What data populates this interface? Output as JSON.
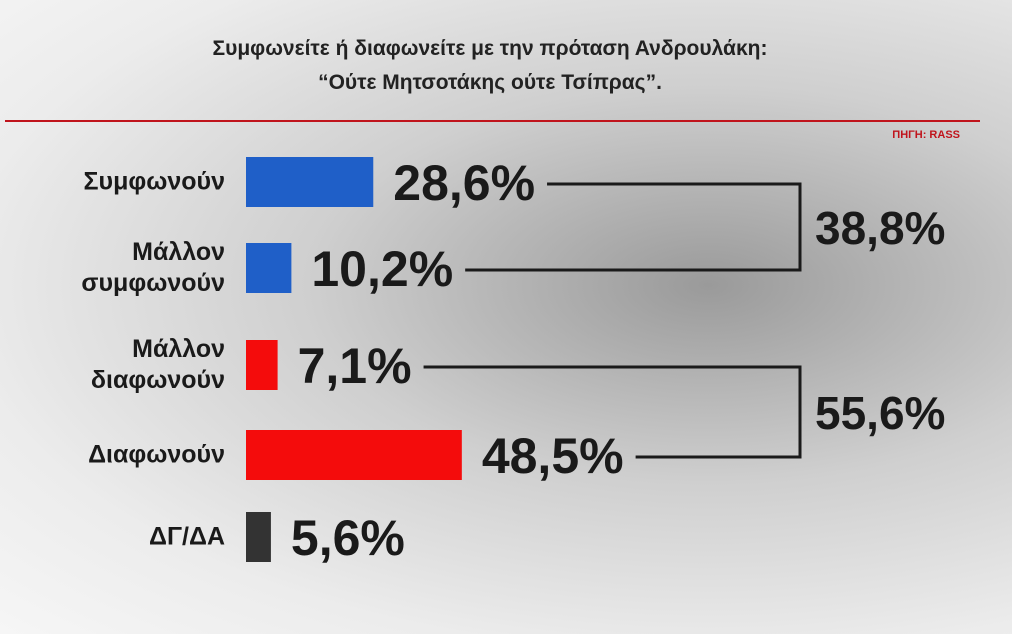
{
  "chart_data": {
    "type": "hbar",
    "title": "Συμφωνείτε ή διαφωνείτε με την πρόταση Ανδρουλάκη:",
    "subtitle": "“Ούτε Μητσοτάκης ούτε Τσίπρας”.",
    "source": "ΠΗΓΗ: RASS",
    "categories": [
      "Συμφωνούν",
      "Μάλλον συμφωνούν",
      "Μάλλον διαφωνούν",
      "Διαφωνούν",
      "ΔΓ/ΔΑ"
    ],
    "values": [
      28.6,
      10.2,
      7.1,
      48.5,
      5.6
    ],
    "value_labels": [
      "28,6%",
      "10,2%",
      "7,1%",
      "48,5%",
      "5,6%"
    ],
    "colors": [
      "#1f5fc8",
      "#1f5fc8",
      "#f40c0c",
      "#f40c0c",
      "#333333"
    ],
    "annotations": [
      {
        "value": 38.8,
        "label": "38,8%"
      },
      {
        "value": 55.6,
        "label": "55,6%"
      }
    ],
    "xlim": [
      0,
      60
    ]
  }
}
